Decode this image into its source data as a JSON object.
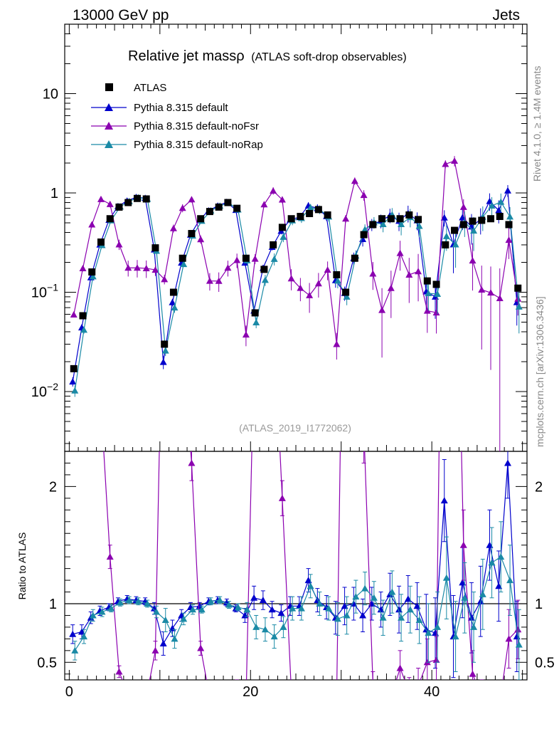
{
  "header": {
    "left": "13000 GeV pp",
    "right": "Jets"
  },
  "side_labels": {
    "rivet": "Rivet 4.1.0, ≥ 1.4M events",
    "mcplots": "mcplots.cern.ch [arXiv:1306.3436]"
  },
  "watermark": "(ATLAS_2019_I1772062)",
  "chart_data": {
    "type": "line",
    "title": "Relative jet massρ",
    "subtitle": "(ATLAS soft-drop observables)",
    "xlim": [
      -0.5,
      50.5
    ],
    "main_ylim": [
      0.0025,
      50
    ],
    "main_yscale": "log",
    "ratio_ylim": [
      0.35,
      2.3
    ],
    "ratio_ylabel": "Ratio to ATLAS",
    "x_ticks": [
      "0",
      "20",
      "40"
    ],
    "main_y_ticks": [
      "10",
      "1",
      "10−1",
      "10−2"
    ],
    "ratio_y_ticks": [
      "2",
      "1",
      "0.5"
    ],
    "x": [
      0.5,
      1.5,
      2.5,
      3.5,
      4.5,
      5.5,
      6.5,
      7.5,
      8.5,
      9.5,
      10.5,
      11.5,
      12.5,
      13.5,
      14.5,
      15.5,
      16.5,
      17.5,
      18.5,
      19.5,
      20.5,
      21.5,
      22.5,
      23.5,
      24.5,
      25.5,
      26.5,
      27.5,
      28.5,
      29.5,
      30.5,
      31.5,
      32.5,
      33.5,
      34.5,
      35.5,
      36.5,
      37.5,
      38.5,
      39.5,
      40.5,
      41.5,
      42.5,
      43.5,
      44.5,
      45.5,
      46.5,
      47.5,
      48.5,
      49.5
    ],
    "data": {
      "name": "ATLAS",
      "color": "#000000",
      "values": [
        0.017,
        0.058,
        0.16,
        0.32,
        0.55,
        0.72,
        0.8,
        0.88,
        0.87,
        0.28,
        0.03,
        0.1,
        0.22,
        0.39,
        0.55,
        0.65,
        0.72,
        0.8,
        0.7,
        0.22,
        0.062,
        0.17,
        0.3,
        0.45,
        0.55,
        0.58,
        0.62,
        0.68,
        0.6,
        0.15,
        0.1,
        0.22,
        0.38,
        0.48,
        0.55,
        0.55,
        0.55,
        0.6,
        0.54,
        0.13,
        0.12,
        0.3,
        0.42,
        0.48,
        0.52,
        0.53,
        0.55,
        0.58,
        0.48,
        0.11
      ]
    },
    "series": [
      {
        "name": "Pythia 8.315 default",
        "color": "#0000cc",
        "ratio": [
          0.74,
          0.76,
          0.88,
          0.94,
          0.97,
          1.02,
          1.04,
          1.03,
          1.02,
          0.96,
          0.66,
          0.79,
          0.9,
          0.97,
          0.98,
          1.02,
          1.03,
          1.01,
          0.96,
          0.9,
          1.05,
          1.03,
          0.95,
          0.92,
          0.98,
          0.98,
          1.2,
          1.03,
          0.97,
          0.88,
          0.98,
          1.0,
          0.9,
          1.0,
          0.95,
          1.08,
          0.95,
          1.04,
          0.98,
          0.78,
          0.75,
          1.88,
          0.72,
          1.18,
          0.88,
          1.02,
          1.5,
          1.15,
          2.2,
          0.72
        ],
        "ratio_err": [
          0.08,
          0.06,
          0.05,
          0.04,
          0.03,
          0.03,
          0.03,
          0.03,
          0.03,
          0.05,
          0.1,
          0.07,
          0.05,
          0.04,
          0.03,
          0.03,
          0.03,
          0.03,
          0.03,
          0.06,
          0.1,
          0.08,
          0.07,
          0.07,
          0.08,
          0.08,
          0.1,
          0.1,
          0.1,
          0.14,
          0.16,
          0.14,
          0.14,
          0.14,
          0.15,
          0.18,
          0.2,
          0.2,
          0.2,
          0.3,
          0.3,
          0.35,
          0.35,
          0.3,
          0.3,
          0.3,
          0.3,
          0.3,
          0.3,
          0.3
        ]
      },
      {
        "name": "Pythia 8.315 default-noFsr",
        "color": "#8b00b0",
        "ratio": [
          3.5,
          3.0,
          3.0,
          2.7,
          1.4,
          0.42,
          0.22,
          0.2,
          0.2,
          0.6,
          4.5,
          4.4,
          3.2,
          2.2,
          0.62,
          0.2,
          0.18,
          0.22,
          0.3,
          0.17,
          3.5,
          4.5,
          3.5,
          1.9,
          0.25,
          0.19,
          0.15,
          0.18,
          0.28,
          0.2,
          5.5,
          6.0,
          2.5,
          0.32,
          0.12,
          0.2,
          0.45,
          0.25,
          0.3,
          0.5,
          0.52,
          6.5,
          5.0,
          1.5,
          0.4,
          0.2,
          0.18,
          0.15,
          0.7,
          0.78
        ],
        "ratio_err": [
          0.2,
          0.2,
          0.2,
          0.15,
          0.1,
          0.05,
          0.04,
          0.04,
          0.04,
          0.08,
          0.5,
          0.4,
          0.3,
          0.15,
          0.06,
          0.04,
          0.04,
          0.04,
          0.05,
          0.04,
          0.4,
          0.3,
          0.3,
          0.15,
          0.06,
          0.05,
          0.05,
          0.05,
          0.06,
          0.06,
          0.5,
          0.5,
          0.3,
          0.1,
          0.08,
          0.1,
          0.15,
          0.12,
          0.15,
          0.2,
          0.2,
          0.6,
          0.6,
          0.3,
          0.2,
          0.15,
          0.15,
          0.15,
          0.25,
          0.25
        ]
      },
      {
        "name": "Pythia 8.315 default-noRap",
        "color": "#1a8aa6",
        "ratio": [
          0.6,
          0.72,
          0.9,
          0.93,
          0.96,
          1.01,
          1.03,
          1.02,
          1.0,
          0.93,
          0.86,
          0.7,
          0.87,
          0.95,
          0.95,
          1.02,
          1.03,
          0.99,
          0.97,
          0.95,
          0.8,
          0.78,
          0.72,
          0.8,
          0.96,
          0.96,
          1.15,
          1.0,
          0.96,
          0.87,
          0.9,
          1.06,
          1.13,
          1.05,
          0.88,
          1.1,
          0.88,
          0.95,
          0.86,
          0.75,
          0.8,
          1.22,
          0.72,
          1.05,
          0.8,
          1.08,
          1.35,
          1.4,
          1.2,
          0.65
        ],
        "ratio_err": [
          0.08,
          0.06,
          0.05,
          0.04,
          0.03,
          0.03,
          0.03,
          0.03,
          0.03,
          0.05,
          0.1,
          0.08,
          0.05,
          0.04,
          0.03,
          0.03,
          0.03,
          0.03,
          0.03,
          0.06,
          0.1,
          0.1,
          0.1,
          0.09,
          0.1,
          0.1,
          0.1,
          0.1,
          0.1,
          0.14,
          0.16,
          0.14,
          0.14,
          0.14,
          0.15,
          0.18,
          0.2,
          0.2,
          0.2,
          0.25,
          0.3,
          0.35,
          0.3,
          0.3,
          0.3,
          0.3,
          0.3,
          0.3,
          0.3,
          0.3
        ]
      }
    ]
  }
}
